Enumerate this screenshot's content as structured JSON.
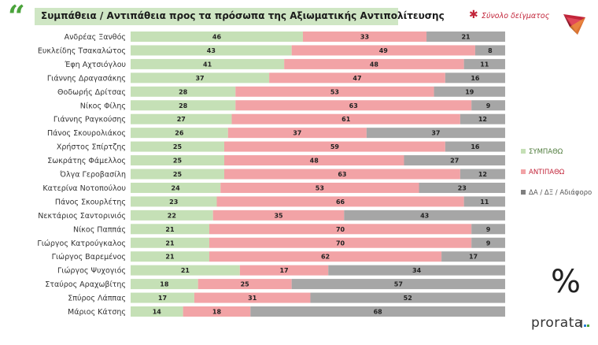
{
  "header": {
    "title": "Συμπάθεια / Αντιπάθεια προς τα πρόσωπα της Αξιωματικής Αντιπολίτευσης",
    "sample_note": "Σύνολο δείγματος"
  },
  "branding": {
    "percent_symbol": "%",
    "brand_name": "prorata"
  },
  "colors": {
    "sympathy": "#c5e0b6",
    "antipathy": "#f2a3a6",
    "neutral": "#a6a6a6",
    "title_band": "#cfe6c4",
    "accent_red": "#c2253a"
  },
  "chart_data": {
    "type": "bar",
    "orientation": "horizontal",
    "stacked": true,
    "categories": [
      "Ανδρέας Ξανθός",
      "Ευκλείδης Τσακαλώτος",
      "Έφη Αχτσιόγλου",
      "Γιάννης Δραγασάκης",
      "Θοδωρής Δρίτσας",
      "Νίκος Φίλης",
      "Γιάννης Ραγκούσης",
      "Πάνος Σκουρολιάκος",
      "Χρήστος Σπίρτζης",
      "Σωκράτης Φάμελλος",
      "Όλγα Γεροβασίλη",
      "Κατερίνα Νοτοπούλου",
      "Πάνος Σκουρλέτης",
      "Νεκτάριος Σαντορινιός",
      "Νίκος Παππάς",
      "Γιώργος Κατρούγκαλος",
      "Γιώργος Βαρεμένος",
      "Γιώργος Ψυχογιός",
      "Σταύρος Αραχωβίτης",
      "Σπύρος Λάππας",
      "Μάριος Κάτσης"
    ],
    "series": [
      {
        "name": "ΣΥΜΠΑΘΩ",
        "color": "#c5e0b6",
        "values": [
          46,
          43,
          41,
          37,
          28,
          28,
          27,
          26,
          25,
          25,
          25,
          24,
          23,
          22,
          21,
          21,
          21,
          21,
          18,
          17,
          14
        ]
      },
      {
        "name": "ΑΝΤΙΠΑΘΩ",
        "color": "#f2a3a6",
        "values": [
          33,
          49,
          48,
          47,
          53,
          63,
          61,
          37,
          59,
          48,
          63,
          53,
          66,
          35,
          70,
          70,
          62,
          17,
          25,
          31,
          18
        ]
      },
      {
        "name": "ΔΑ / ΔΞ / Αδιάφορο",
        "color": "#a6a6a6",
        "values": [
          21,
          8,
          11,
          16,
          19,
          9,
          12,
          37,
          16,
          27,
          12,
          23,
          11,
          43,
          9,
          9,
          17,
          34,
          57,
          52,
          68
        ]
      }
    ],
    "legend_position": "right",
    "grid": false
  }
}
